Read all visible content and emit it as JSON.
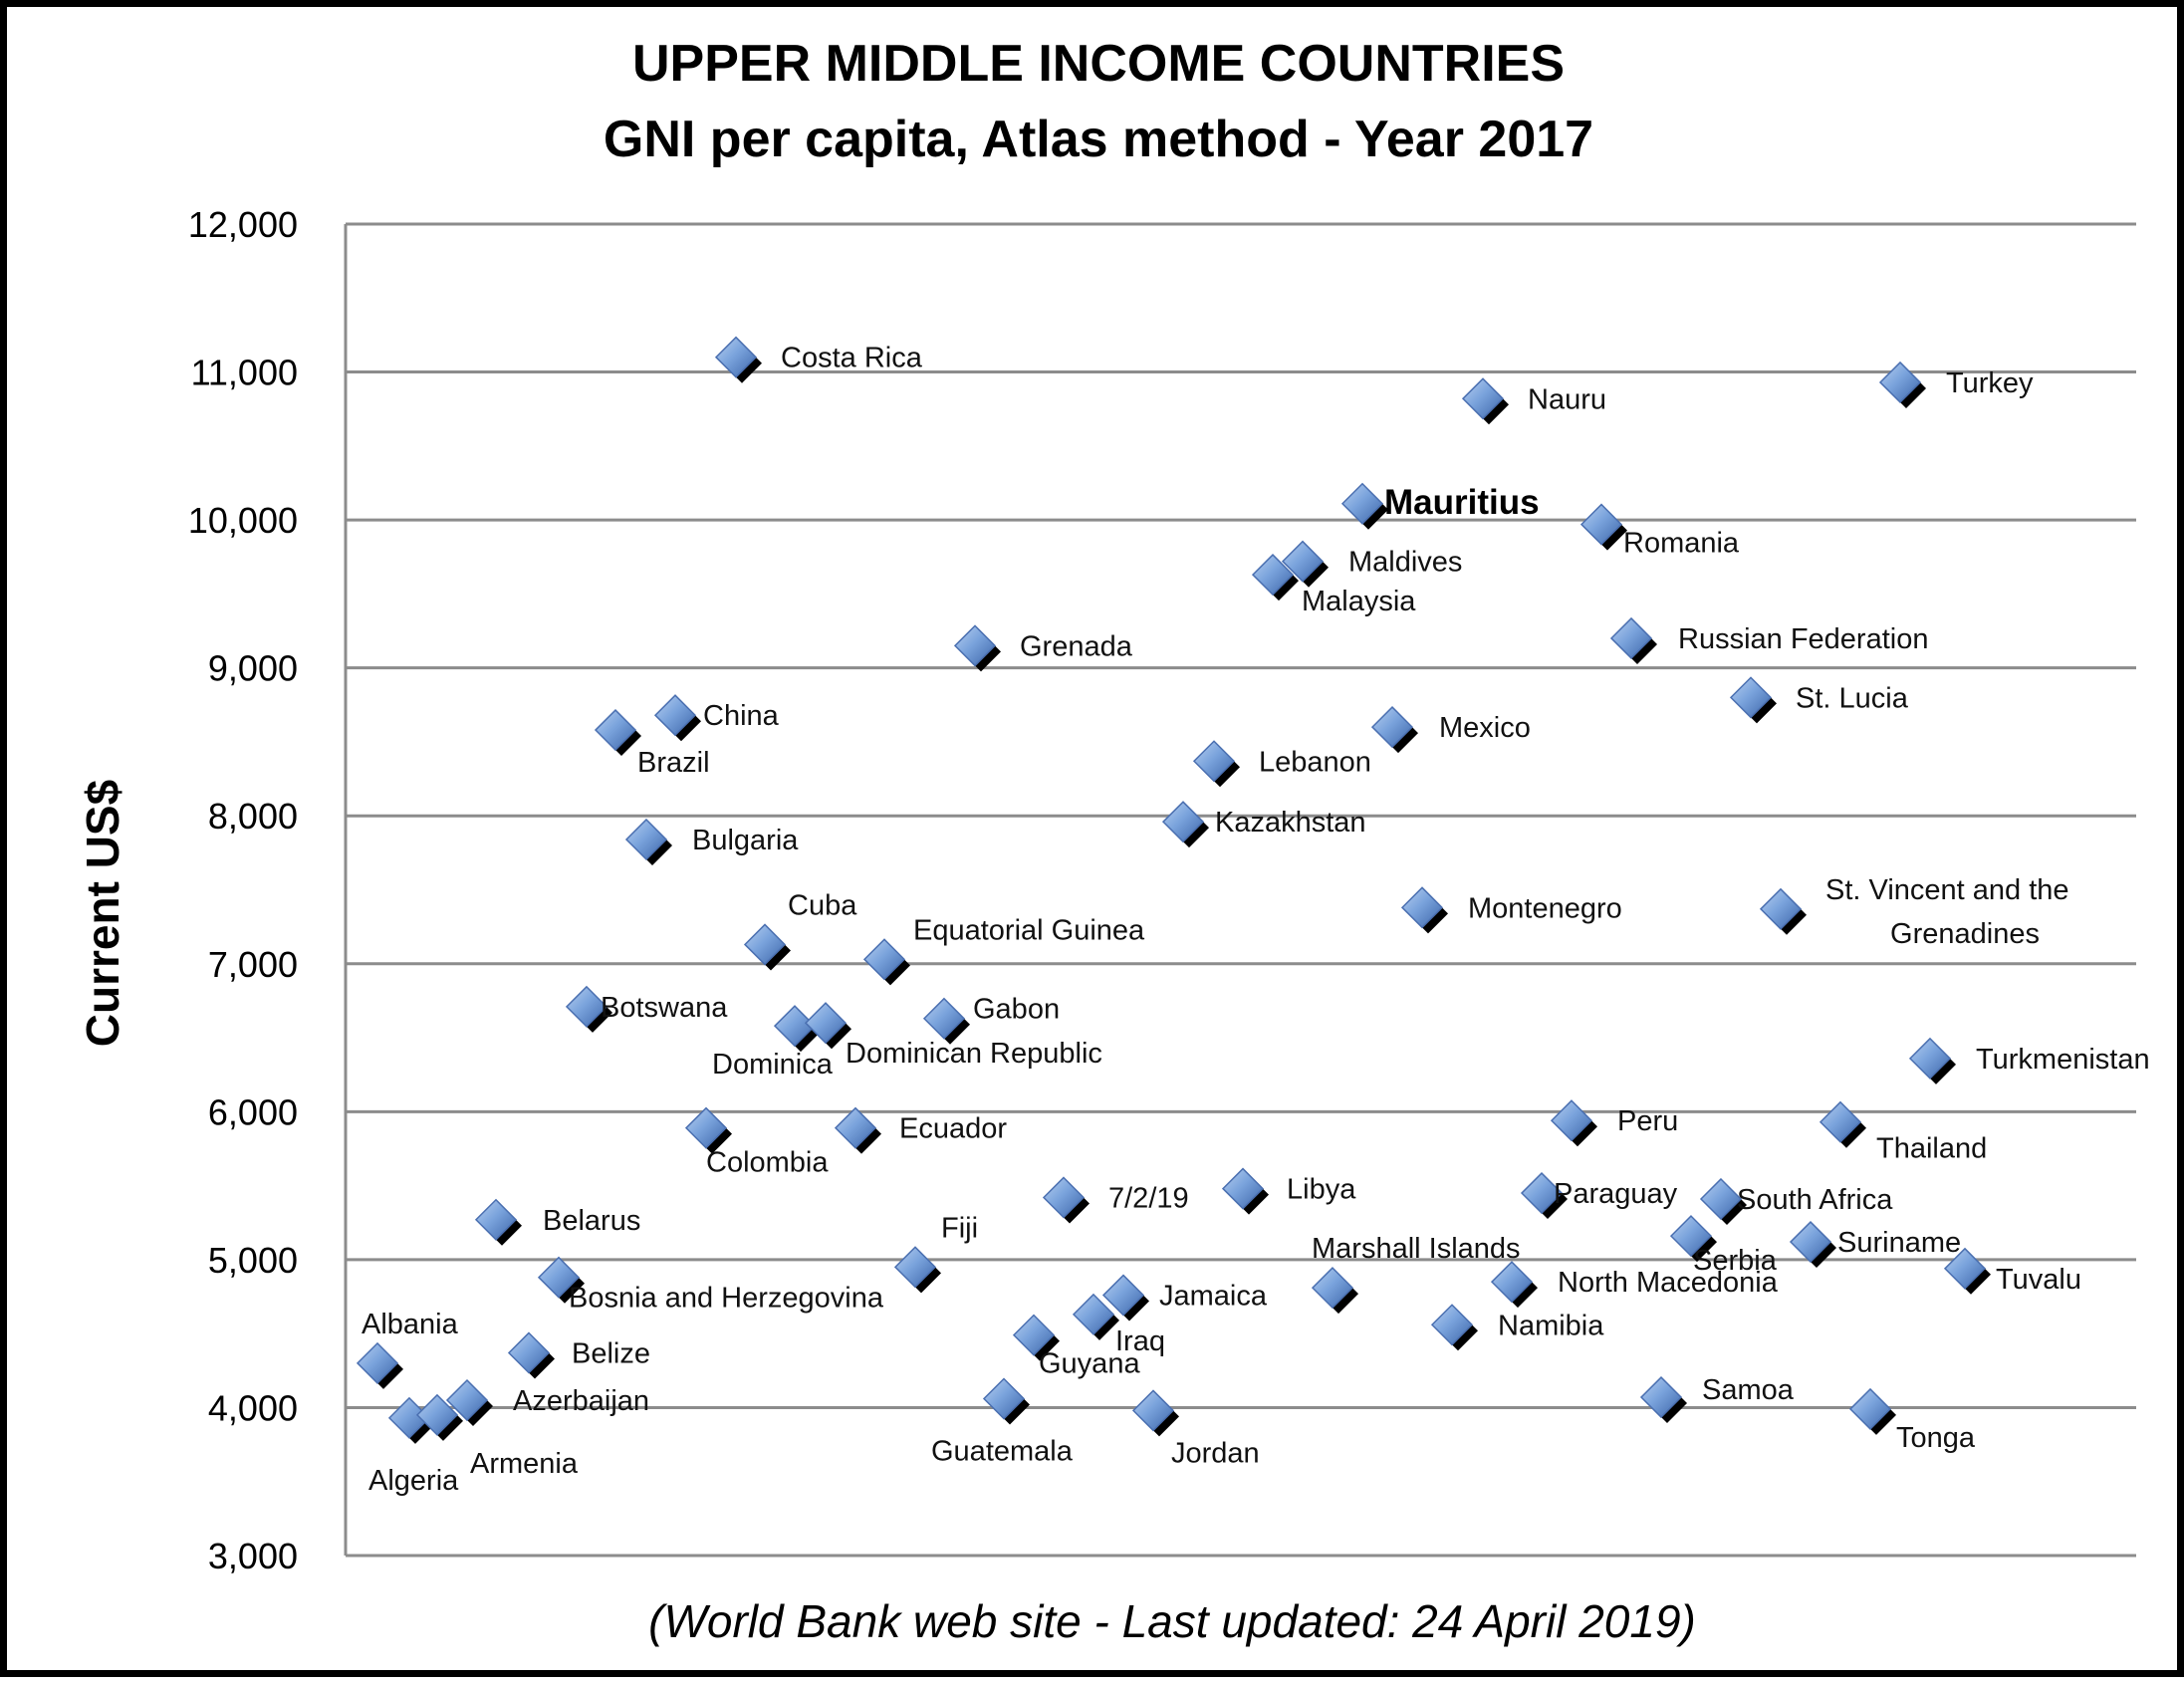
{
  "chart_data": {
    "type": "scatter",
    "title": [
      "UPPER MIDDLE INCOME COUNTRIES",
      "GNI per capita, Atlas method - Year 2017"
    ],
    "ylabel": "Current US$",
    "xlabel": "",
    "ylim": [
      3000,
      12000
    ],
    "yticks": [
      "3,000",
      "4,000",
      "5,000",
      "6,000",
      "7,000",
      "8,000",
      "9,000",
      "10,000",
      "11,000",
      "12,000"
    ],
    "grid": true,
    "source": "(World Bank web site - Last updated: 24 April 2019)",
    "colors": {
      "marker_fill": "#7aa3dc",
      "marker_dark": "#3b64a8",
      "shadow": "#000000",
      "grid": "#8c8c8c"
    },
    "points": [
      {
        "name": "Albania",
        "value": 4300
      },
      {
        "name": "Algeria",
        "value": 3930
      },
      {
        "name": "Armenia",
        "value": 3950
      },
      {
        "name": "Azerbaijan",
        "value": 4050
      },
      {
        "name": "Belarus",
        "value": 5270
      },
      {
        "name": "Belize",
        "value": 4370
      },
      {
        "name": "Bosnia and Herzegovina",
        "value": 4880
      },
      {
        "name": "Botswana",
        "value": 6710
      },
      {
        "name": "Brazil",
        "value": 8580
      },
      {
        "name": "Bulgaria",
        "value": 7840
      },
      {
        "name": "China",
        "value": 8680
      },
      {
        "name": "Colombia",
        "value": 5890
      },
      {
        "name": "Cuba",
        "value": 7130
      },
      {
        "name": "Dominica",
        "value": 6580
      },
      {
        "name": "Dominican Republic",
        "value": 6600
      },
      {
        "name": "Costa Rica",
        "value": 11100
      },
      {
        "name": "Ecuador",
        "value": 5890
      },
      {
        "name": "Equatorial Guinea",
        "value": 7030
      },
      {
        "name": "Fiji",
        "value": 4950
      },
      {
        "name": "Gabon",
        "value": 6630
      },
      {
        "name": "Grenada",
        "value": 9150
      },
      {
        "name": "Guatemala",
        "value": 4060
      },
      {
        "name": "Guyana",
        "value": 4490
      },
      {
        "name": "7/2/19",
        "value": 5420
      },
      {
        "name": "Iraq",
        "value": 4630
      },
      {
        "name": "Jamaica",
        "value": 4760
      },
      {
        "name": "Jordan",
        "value": 3980
      },
      {
        "name": "Kazakhstan",
        "value": 7960
      },
      {
        "name": "Lebanon",
        "value": 8370
      },
      {
        "name": "Libya",
        "value": 5480
      },
      {
        "name": "Malaysia",
        "value": 9630
      },
      {
        "name": "Maldives",
        "value": 9720
      },
      {
        "name": "Marshall Islands",
        "value": 4810
      },
      {
        "name": "Mauritius",
        "value": 10110,
        "highlight": true
      },
      {
        "name": "Mexico",
        "value": 8600
      },
      {
        "name": "Montenegro",
        "value": 7380
      },
      {
        "name": "Namibia",
        "value": 4560
      },
      {
        "name": "Nauru",
        "value": 10820
      },
      {
        "name": "North Macedonia",
        "value": 4850
      },
      {
        "name": "Paraguay",
        "value": 5450
      },
      {
        "name": "Peru",
        "value": 5940
      },
      {
        "name": "Romania",
        "value": 9970
      },
      {
        "name": "Russian Federation",
        "value": 9200
      },
      {
        "name": "Samoa",
        "value": 4070
      },
      {
        "name": "Serbia",
        "value": 5160
      },
      {
        "name": "South Africa",
        "value": 5410
      },
      {
        "name": "St. Lucia",
        "value": 8800
      },
      {
        "name": "St. Vincent and the Grenadines",
        "value": 7370
      },
      {
        "name": "Suriname",
        "value": 5120
      },
      {
        "name": "Thailand",
        "value": 5930
      },
      {
        "name": "Tonga",
        "value": 3990
      },
      {
        "name": "Turkey",
        "value": 10930
      },
      {
        "name": "Turkmenistan",
        "value": 6360
      },
      {
        "name": "Tuvalu",
        "value": 4940
      }
    ]
  }
}
